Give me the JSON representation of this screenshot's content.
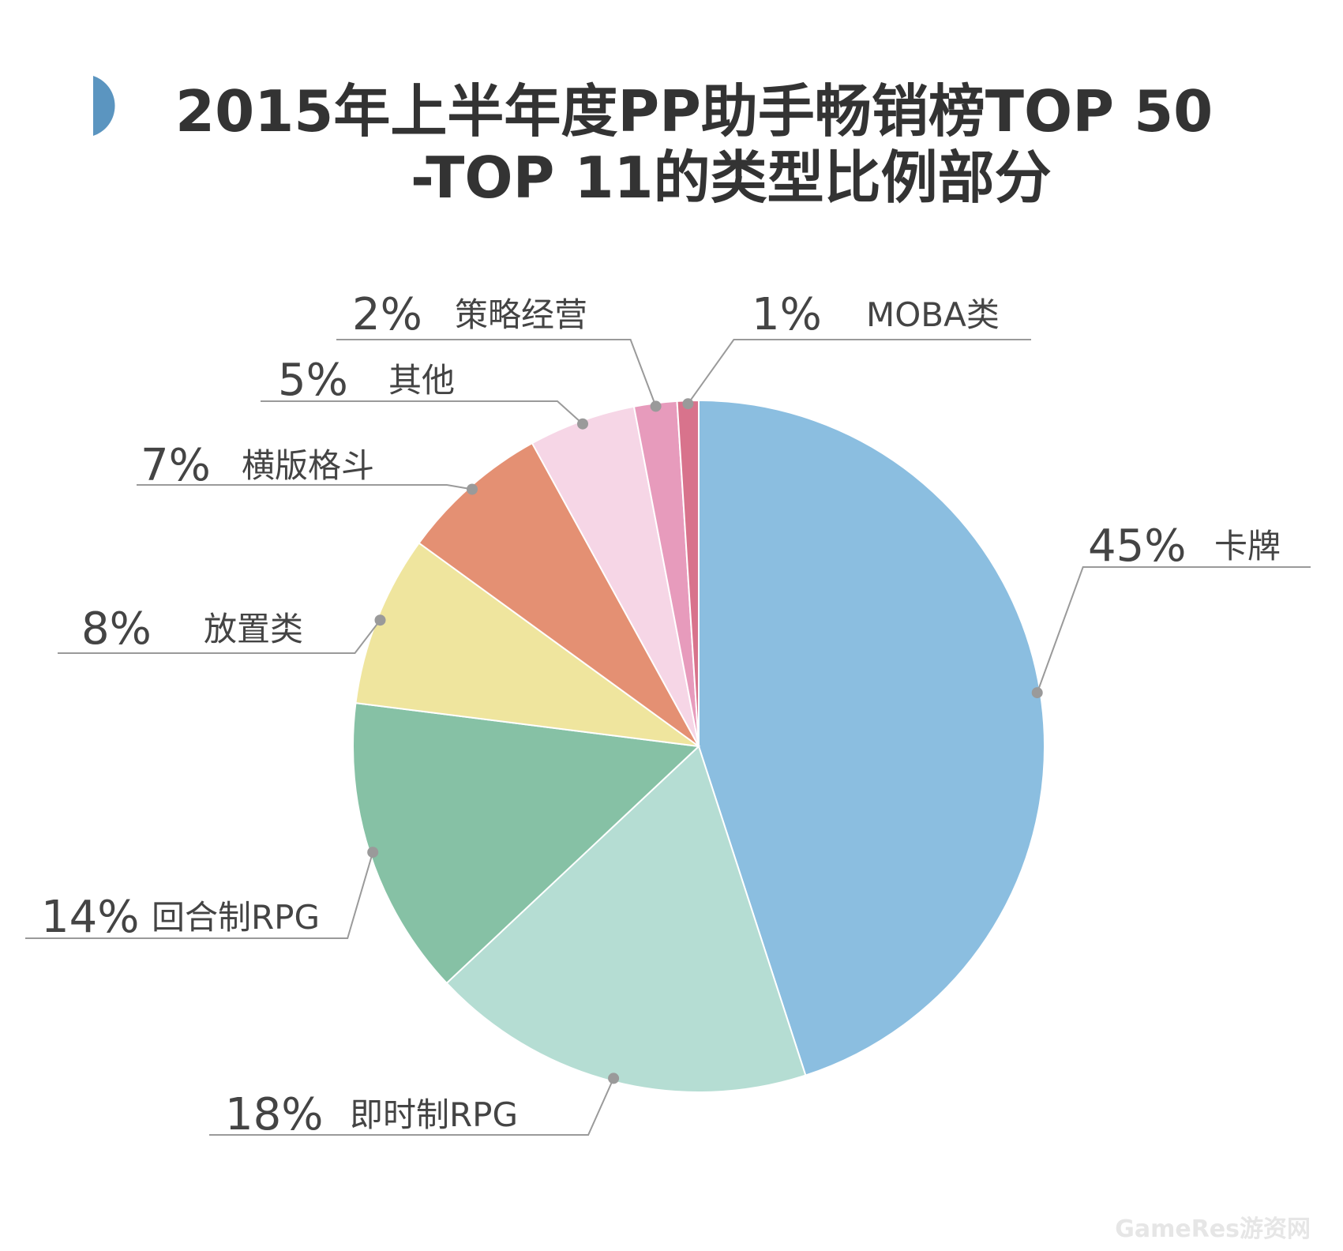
{
  "chart_data": {
    "type": "pie",
    "title": "2015年上半年度PP助手畅销榜TOP 50",
    "subtitle": "-TOP 11的类型比例部分",
    "categories": [
      "卡牌",
      "即时制RPG",
      "回合制RPG",
      "放置类",
      "横版格斗",
      "其他",
      "策略经营",
      "MOBA类"
    ],
    "values": [
      45,
      18,
      14,
      8,
      7,
      5,
      2,
      1
    ],
    "value_labels": [
      "45%",
      "18%",
      "14%",
      "8%",
      "7%",
      "5%",
      "2%",
      "1%"
    ],
    "colors": [
      "#8bbee0",
      "#b5ddd3",
      "#86c1a5",
      "#efe59e",
      "#e49073",
      "#f6d6e6",
      "#e79bbc",
      "#d8738c"
    ],
    "start_angle": "12 o'clock",
    "direction": "clockwise",
    "legend": "none"
  },
  "accent_color": "#5b95c0",
  "watermark": "GameRes游资网"
}
